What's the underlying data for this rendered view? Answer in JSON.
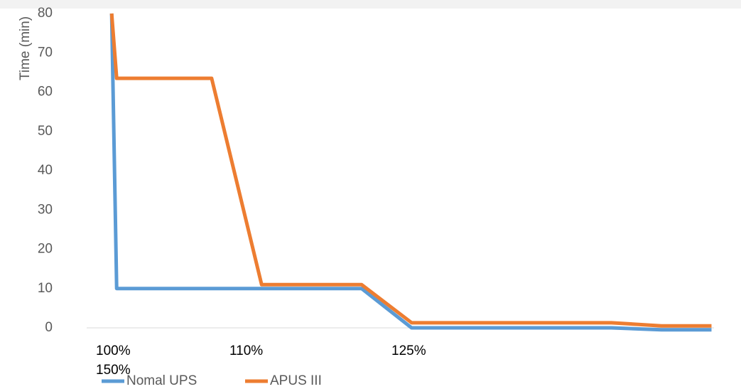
{
  "chart_data": {
    "type": "line",
    "y_label": "Time (min)",
    "x_labels": [
      "100%",
      "110%",
      "125%",
      "150%"
    ],
    "x": [
      0,
      0.1,
      2,
      3,
      5,
      6,
      10,
      11,
      12
    ],
    "xlim": [
      -0.5,
      12.05
    ],
    "ylim": [
      0,
      80
    ],
    "yticks": [
      0,
      10,
      20,
      30,
      40,
      50,
      60,
      70,
      80
    ],
    "series": [
      {
        "name": "Nomal UPS",
        "color": "#5b9bd5",
        "values": [
          80,
          10,
          10,
          10,
          10,
          0,
          0,
          -0.5,
          -0.5
        ]
      },
      {
        "name": "APUS III",
        "color": "#ed7d31",
        "values": [
          80,
          63.5,
          63.5,
          11,
          11,
          1.3,
          1.3,
          0.5,
          0.5
        ]
      }
    ]
  }
}
